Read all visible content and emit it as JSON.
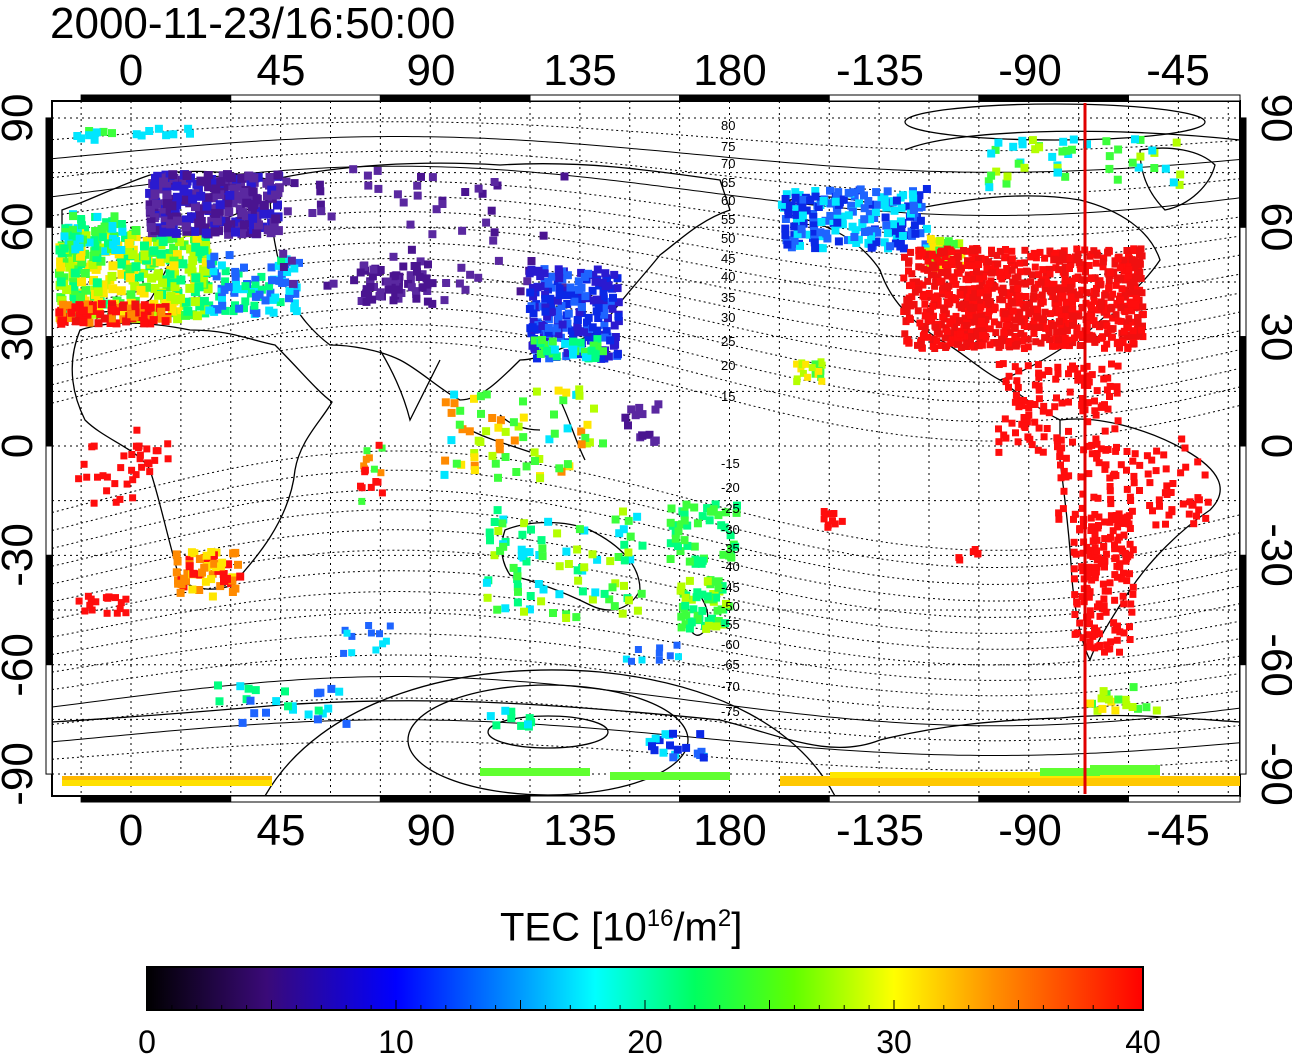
{
  "title": "2000-11-23/16:50:00",
  "map": {
    "top_lon_labels": [
      "0",
      "45",
      "90",
      "135",
      "180",
      "-135",
      "-90",
      "-45"
    ],
    "bottom_lon_labels": [
      "0",
      "45",
      "90",
      "135",
      "180",
      "-135",
      "-90",
      "-45"
    ],
    "lat_labels": [
      "90",
      "60",
      "30",
      "0",
      "-30",
      "-60",
      "-90"
    ],
    "contour_labels_north": [
      "80",
      "75",
      "70",
      "65",
      "60",
      "55",
      "50",
      "45",
      "40",
      "35",
      "30",
      "25",
      "20",
      "15"
    ],
    "contour_labels_south": [
      "-15",
      "-20",
      "-25",
      "-30",
      "-35",
      "-40",
      "-45",
      "-50",
      "-55",
      "-60",
      "-65",
      "-70",
      "-75"
    ],
    "meridian_line_color": "#e00000"
  },
  "colorbar": {
    "label_prefix": "TEC  [10",
    "label_sup1": "16",
    "label_mid": "/m",
    "label_sup2": "2",
    "label_suffix": "]",
    "ticks": [
      "0",
      "10",
      "20",
      "30",
      "40"
    ],
    "min": 0,
    "max": 40
  }
}
